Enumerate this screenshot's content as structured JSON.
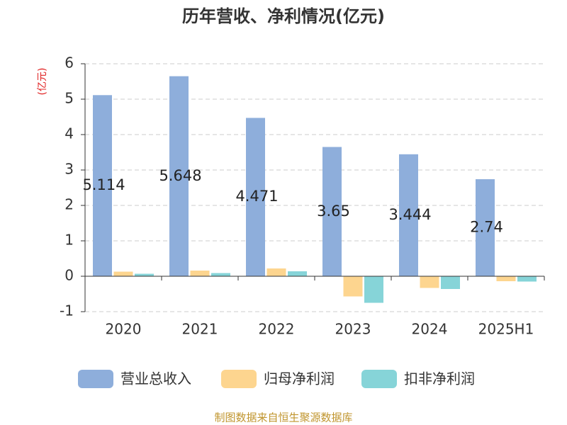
{
  "chart_data": {
    "type": "bar",
    "title": "历年营收、净利情况(亿元)",
    "y_label": "(亿元)",
    "source": "制图数据来自恒生聚源数据库",
    "categories": [
      "2020",
      "2021",
      "2022",
      "2023",
      "2024",
      "2025H1"
    ],
    "series": [
      {
        "name": "营业总收入",
        "color": "#8eaedb",
        "values": [
          5.114,
          5.648,
          4.471,
          3.65,
          3.444,
          2.74
        ],
        "data_labels": true
      },
      {
        "name": "归母净利润",
        "color": "#fdd58f",
        "values": [
          0.13,
          0.16,
          0.22,
          -0.57,
          -0.33,
          -0.14
        ]
      },
      {
        "name": "扣非净利润",
        "color": "#86d4d8",
        "values": [
          0.07,
          0.09,
          0.14,
          -0.75,
          -0.36,
          -0.15
        ]
      }
    ],
    "ylim": [
      -1,
      6
    ],
    "yticks": [
      -1,
      0,
      1,
      2,
      3,
      4,
      5,
      6
    ],
    "grid": true
  }
}
